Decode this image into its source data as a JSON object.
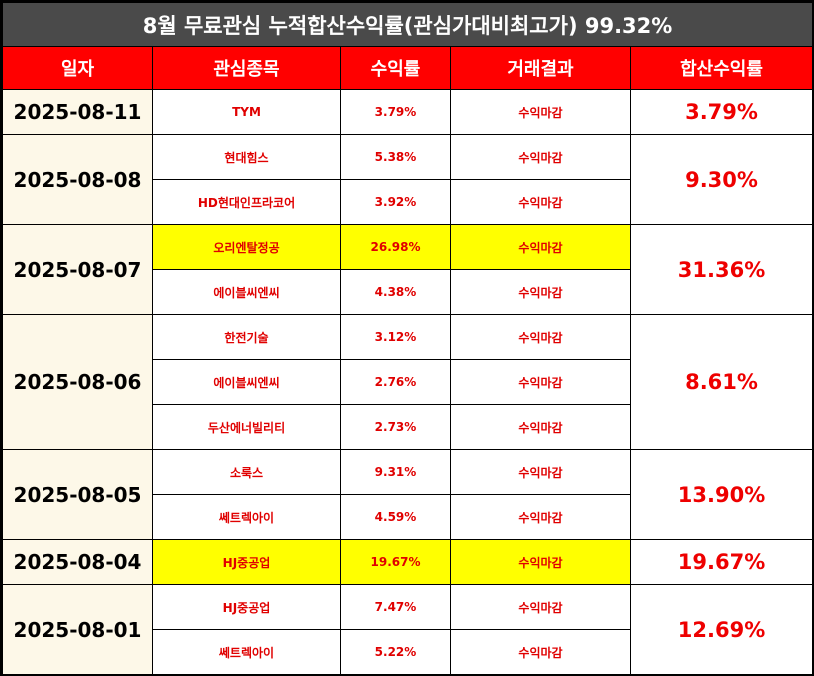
{
  "title": "8월 무료관심 누적합산수익률(관심가대비최고가) 99.32%",
  "headers": [
    "일자",
    "관심종목",
    "수익률",
    "거래결과",
    "합산수익률"
  ],
  "groups": [
    {
      "date": "2025-08-11",
      "total": "3.79%",
      "rows": [
        {
          "stock": "TYM",
          "rate": "3.79%",
          "result": "수익마감",
          "highlight": false
        }
      ]
    },
    {
      "date": "2025-08-08",
      "total": "9.30%",
      "rows": [
        {
          "stock": "현대힘스",
          "rate": "5.38%",
          "result": "수익마감",
          "highlight": false
        },
        {
          "stock": "HD현대인프라코어",
          "rate": "3.92%",
          "result": "수익마감",
          "highlight": false
        }
      ]
    },
    {
      "date": "2025-08-07",
      "total": "31.36%",
      "rows": [
        {
          "stock": "오리엔탈정공",
          "rate": "26.98%",
          "result": "수익마감",
          "highlight": true
        },
        {
          "stock": "에이블씨엔씨",
          "rate": "4.38%",
          "result": "수익마감",
          "highlight": false
        }
      ]
    },
    {
      "date": "2025-08-06",
      "total": "8.61%",
      "rows": [
        {
          "stock": "한전기술",
          "rate": "3.12%",
          "result": "수익마감",
          "highlight": false
        },
        {
          "stock": "에이블씨엔씨",
          "rate": "2.76%",
          "result": "수익마감",
          "highlight": false
        },
        {
          "stock": "두산에너빌리티",
          "rate": "2.73%",
          "result": "수익마감",
          "highlight": false
        }
      ]
    },
    {
      "date": "2025-08-05",
      "total": "13.90%",
      "rows": [
        {
          "stock": "소룩스",
          "rate": "9.31%",
          "result": "수익마감",
          "highlight": false
        },
        {
          "stock": "쎄트렉아이",
          "rate": "4.59%",
          "result": "수익마감",
          "highlight": false
        }
      ]
    },
    {
      "date": "2025-08-04",
      "total": "19.67%",
      "rows": [
        {
          "stock": "HJ중공업",
          "rate": "19.67%",
          "result": "수익마감",
          "highlight": true
        }
      ]
    },
    {
      "date": "2025-08-01",
      "total": "12.69%",
      "rows": [
        {
          "stock": "HJ중공업",
          "rate": "7.47%",
          "result": "수익마감",
          "highlight": false
        },
        {
          "stock": "쎄트렉아이",
          "rate": "5.22%",
          "result": "수익마감",
          "highlight": false
        }
      ]
    }
  ]
}
